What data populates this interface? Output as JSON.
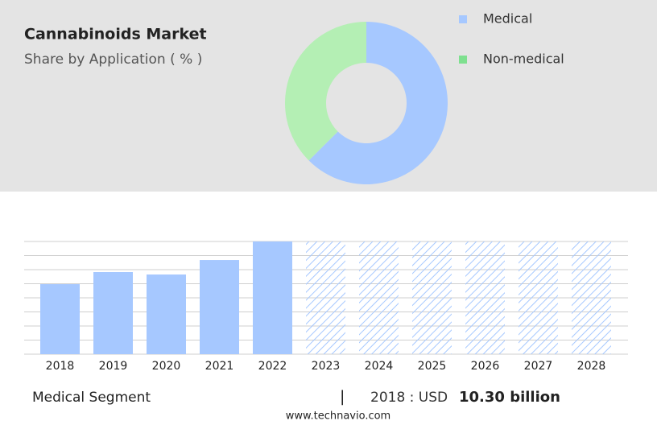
{
  "chart_data": [
    {
      "type": "pie",
      "title": "Cannabinoids Market",
      "subtitle": "Share by Application ( % )",
      "donut": true,
      "categories": [
        "Medical",
        "Non-medical"
      ],
      "values": [
        62.5,
        37.5
      ],
      "colors": [
        "#a6c8ff",
        "#b4efb4"
      ],
      "legend_colors": [
        "#a6c8ff",
        "#7ee08f"
      ],
      "legend": "right"
    },
    {
      "type": "bar",
      "categories": [
        "2018",
        "2019",
        "2020",
        "2021",
        "2022",
        "2023",
        "2024",
        "2025",
        "2026",
        "2027",
        "2028"
      ],
      "values": [
        10.3,
        12.08,
        11.72,
        13.85,
        16.58,
        null,
        null,
        null,
        null,
        null,
        null
      ],
      "color": "#a6c8ff",
      "forecast_style": "hatched",
      "grid": true
    }
  ],
  "footer": {
    "segment": "Medical Segment",
    "separator": "|",
    "year_label": "2018 : USD",
    "value_label": "10.30 billion"
  },
  "source": "www.technavio.com"
}
